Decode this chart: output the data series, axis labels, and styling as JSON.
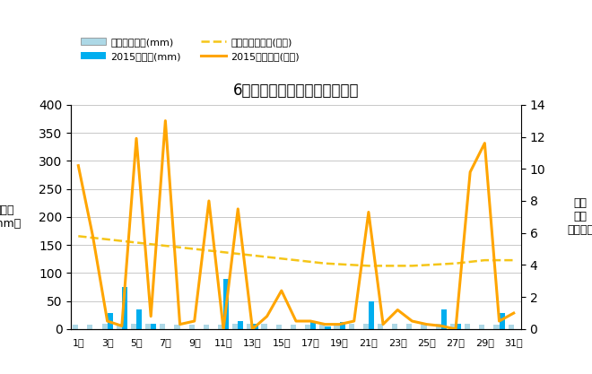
{
  "title": "6月降水量・日照時間（日別）",
  "days": [
    1,
    2,
    3,
    4,
    5,
    6,
    7,
    8,
    9,
    10,
    11,
    12,
    13,
    14,
    15,
    16,
    17,
    18,
    19,
    20,
    21,
    22,
    23,
    24,
    25,
    26,
    27,
    28,
    29,
    30,
    31
  ],
  "precip_avg": [
    8,
    8,
    10,
    10,
    10,
    10,
    10,
    8,
    8,
    8,
    8,
    10,
    10,
    10,
    8,
    8,
    8,
    8,
    10,
    10,
    10,
    10,
    10,
    10,
    10,
    10,
    10,
    10,
    8,
    8,
    8
  ],
  "precip_2015": [
    0,
    0,
    28,
    75,
    35,
    10,
    0,
    0,
    0,
    0,
    90,
    15,
    10,
    0,
    0,
    0,
    12,
    5,
    12,
    0,
    50,
    0,
    0,
    0,
    0,
    35,
    10,
    0,
    0,
    28,
    0
  ],
  "sunshine_avg": [
    5.8,
    5.7,
    5.6,
    5.5,
    5.4,
    5.3,
    5.2,
    5.1,
    5.0,
    4.9,
    4.8,
    4.7,
    4.6,
    4.5,
    4.4,
    4.3,
    4.2,
    4.1,
    4.05,
    4.0,
    3.95,
    3.95,
    3.95,
    3.95,
    4.0,
    4.05,
    4.1,
    4.2,
    4.3,
    4.3,
    4.3
  ],
  "sunshine_2015": [
    10.2,
    5.8,
    0.5,
    0.2,
    11.9,
    0.8,
    13.0,
    0.3,
    0.5,
    8.0,
    0.0,
    7.5,
    0.0,
    0.8,
    2.4,
    0.5,
    0.5,
    0.3,
    0.3,
    0.5,
    7.3,
    0.3,
    1.2,
    0.5,
    0.3,
    0.2,
    0.0,
    9.8,
    11.6,
    0.5,
    1.0
  ],
  "bar_avg_color": "#add8e6",
  "bar_2015_color": "#00aeef",
  "line_avg_color": "#f5c518",
  "line_2015_color": "#ffa500",
  "ylabel_left": "降水量\n（mm）",
  "ylabel_right": "日照\n時間\n（時間）",
  "ylim_left": [
    0,
    400
  ],
  "ylim_right": [
    0,
    14
  ],
  "yticks_left": [
    0,
    50,
    100,
    150,
    200,
    250,
    300,
    350,
    400
  ],
  "yticks_right": [
    0,
    2,
    4,
    6,
    8,
    10,
    12,
    14
  ],
  "legend_labels": [
    "降水量平年値(mm)",
    "2015降水量(mm)",
    "日照時間平年値(時間)",
    "2015日照時間(時間)"
  ],
  "background_color": "#ffffff",
  "grid_color": "#c8c8c8",
  "figsize": [
    6.6,
    4.17
  ],
  "dpi": 100
}
